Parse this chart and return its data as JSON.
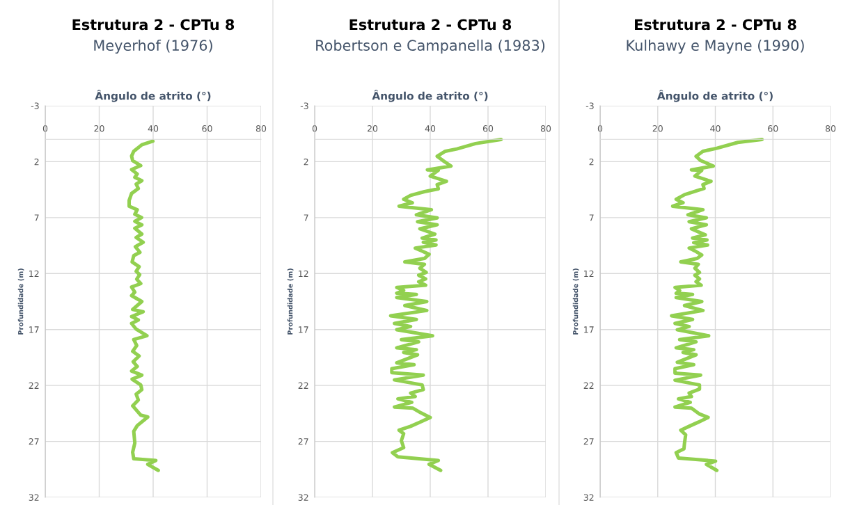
{
  "chart_data": [
    {
      "type": "line",
      "title": "Estrutura 2 - CPTu 8",
      "subtitle": "Meyerhof (1976)",
      "xlabel": "Ângulo de atrito (°)",
      "ylabel": "Profundidade (m)",
      "xlim": [
        0,
        80
      ],
      "xticks": [
        0,
        20,
        40,
        60,
        80
      ],
      "ylim": [
        32,
        -3
      ],
      "yticks": [
        -3,
        2,
        7,
        12,
        17,
        22,
        27,
        32
      ],
      "grid": true,
      "series": [
        {
          "color": "#92d050",
          "x": [
            39.9,
            35.8,
            32.8,
            32,
            32.4,
            35.4,
            32,
            34.1,
            33.2,
            35.8,
            33.7,
            34.5,
            32,
            31.1,
            31.1,
            34.1,
            33.2,
            35.7,
            33.2,
            35.8,
            33.2,
            35.8,
            33.7,
            36.3,
            33.4,
            35.1,
            32.8,
            32.2,
            34.8,
            33.7,
            35,
            33.9,
            35.4,
            32,
            33.2,
            32,
            35.8,
            32.4,
            36.3,
            32,
            34.5,
            32,
            33.7,
            37.7,
            32.8,
            33.9,
            32.4,
            34.8,
            32.6,
            34.1,
            32,
            35.8,
            32.2,
            35.4,
            35.8,
            33.7,
            34.5,
            32.4,
            35.4,
            38,
            34.1,
            32.8,
            33.2,
            32.4,
            32.8,
            41,
            38,
            41.9
          ],
          "values": [
            0.17,
            0.49,
            1.07,
            1.5,
            1.9,
            2.35,
            2.7,
            3.1,
            3.4,
            3.7,
            4.0,
            4.4,
            4.84,
            5.46,
            5.98,
            6.3,
            6.7,
            7.0,
            7.33,
            7.64,
            7.95,
            8.47,
            8.78,
            9.2,
            9.6,
            10.1,
            10.4,
            10.96,
            11.38,
            11.8,
            12.1,
            12.5,
            12.9,
            13.2,
            13.66,
            13.97,
            14.5,
            15.21,
            15.42,
            15.84,
            16.15,
            16.46,
            16.97,
            17.56,
            17.9,
            18.43,
            18.95,
            19.36,
            19.88,
            20.3,
            20.71,
            21.08,
            21.44,
            21.95,
            22.37,
            22.78,
            23.3,
            23.82,
            24.65,
            24.82,
            25.59,
            26.1,
            27.14,
            27.97,
            28.55,
            28.7,
            29.05,
            29.59
          ]
        }
      ]
    },
    {
      "type": "line",
      "title": "Estrutura 2 - CPTu 8",
      "subtitle": "Robertson e Campanella (1983)",
      "xlabel": "Ângulo de atrito (°)",
      "ylabel": "Profundidade (m)",
      "xlim": [
        0,
        80
      ],
      "xticks": [
        0,
        20,
        40,
        60,
        80
      ],
      "ylim": [
        32,
        -3
      ],
      "yticks": [
        -3,
        2,
        7,
        12,
        17,
        22,
        27,
        32
      ],
      "grid": true,
      "series": [
        {
          "color": "#92d050",
          "x": [
            64.5,
            55.7,
            49.2,
            45.2,
            42.4,
            44.4,
            47.2,
            39,
            42.8,
            40,
            45.6,
            42.4,
            42.8,
            38,
            33.2,
            30.8,
            33.8,
            29.2,
            40.4,
            35.2,
            42.4,
            35.6,
            42.4,
            36.4,
            41.6,
            37.2,
            42,
            37.6,
            42,
            34.8,
            37.2,
            39.6,
            38,
            31.2,
            38,
            36.4,
            38.6,
            36,
            38.4,
            36,
            38.4,
            28.4,
            30.8,
            28.4,
            35.2,
            28.4,
            38.8,
            31.2,
            38.8,
            26.3,
            35.2,
            27.6,
            33.2,
            28.4,
            40.8,
            30,
            36,
            28.4,
            35.2,
            30.8,
            35.6,
            28.4,
            34.4,
            26.7,
            26.7,
            37.6,
            27.6,
            37.2,
            37.6,
            33.2,
            34.8,
            28.8,
            33.6,
            27.6,
            34,
            36.8,
            40,
            36.4,
            33.2,
            29.2,
            30.8,
            30,
            30.8,
            26.9,
            28.8,
            42.8,
            39.6,
            43.6
          ],
          "values": [
            0.01,
            0.38,
            0.86,
            1.07,
            1.52,
            1.9,
            2.39,
            2.73,
            2.77,
            3.29,
            3.76,
            4.05,
            4.43,
            4.68,
            5.01,
            5.36,
            5.67,
            5.98,
            6.29,
            6.75,
            7.02,
            7.37,
            7.64,
            8.0,
            8.47,
            8.83,
            9.0,
            9.2,
            9.45,
            9.72,
            9.99,
            10.28,
            10.65,
            10.96,
            11.17,
            11.52,
            11.9,
            12.15,
            12.48,
            12.73,
            13.04,
            13.24,
            13.51,
            13.76,
            13.87,
            14.14,
            14.5,
            14.86,
            15.3,
            15.77,
            16.1,
            16.46,
            16.73,
            17.02,
            17.56,
            17.9,
            18.1,
            18.64,
            18.8,
            19.05,
            19.26,
            19.98,
            20.14,
            20.5,
            20.86,
            21.08,
            21.5,
            21.95,
            22.37,
            22.68,
            22.99,
            23.2,
            23.51,
            23.93,
            24.03,
            24.45,
            24.86,
            25.28,
            25.65,
            26.0,
            26.31,
            26.93,
            27.55,
            28.01,
            28.38,
            28.7,
            29.05,
            29.59
          ]
        }
      ]
    },
    {
      "type": "line",
      "title": "Estrutura 2 - CPTu 8",
      "subtitle": "Kulhawy e Mayne (1990)",
      "xlabel": "Ângulo de atrito (°)",
      "ylabel": "Profundidade (m)",
      "xlim": [
        0,
        80
      ],
      "xticks": [
        0,
        20,
        40,
        60,
        80
      ],
      "ylim": [
        32,
        -3
      ],
      "yticks": [
        -3,
        2,
        7,
        12,
        17,
        22,
        27,
        32
      ],
      "grid": true,
      "series": [
        {
          "color": "#92d050",
          "x": [
            56.2,
            47.8,
            40.5,
            35.7,
            33.3,
            34.9,
            39.3,
            31.7,
            35.3,
            32.9,
            38.5,
            35.7,
            36.1,
            32.5,
            29.3,
            26.4,
            28.8,
            25.2,
            35.7,
            30.5,
            36.9,
            30.9,
            36.9,
            31.7,
            36.5,
            32.1,
            37.1,
            32.5,
            37.3,
            30.9,
            33.3,
            35.3,
            33.7,
            28,
            34.1,
            32.9,
            34.5,
            32.9,
            34.5,
            33.3,
            35.1,
            26,
            27.6,
            26.4,
            32.1,
            26.4,
            35.3,
            29.3,
            35.7,
            24.8,
            32.1,
            26,
            30.9,
            26.8,
            37.7,
            27.6,
            33.3,
            26.4,
            32.5,
            28.8,
            33.3,
            26.8,
            32.5,
            26,
            26,
            34.9,
            26,
            34.5,
            34.5,
            30.9,
            31.7,
            27.2,
            31.3,
            26,
            31.7,
            34.5,
            37.5,
            34.1,
            30.9,
            28,
            29.7,
            29.3,
            29.1,
            26.4,
            27.2,
            40.1,
            36.9,
            40.5
          ],
          "values": [
            0.01,
            0.28,
            0.8,
            1.07,
            1.52,
            1.9,
            2.39,
            2.73,
            2.77,
            3.29,
            3.76,
            4.05,
            4.39,
            4.68,
            4.95,
            5.36,
            5.67,
            5.98,
            6.29,
            6.75,
            7.02,
            7.37,
            7.64,
            8.0,
            8.54,
            8.83,
            9.0,
            9.24,
            9.45,
            9.72,
            10.03,
            10.34,
            10.65,
            10.96,
            11.17,
            11.52,
            11.9,
            12.15,
            12.48,
            12.73,
            13.04,
            13.24,
            13.51,
            13.76,
            13.87,
            14.14,
            14.5,
            14.86,
            15.3,
            15.77,
            16.1,
            16.46,
            16.73,
            17.02,
            17.56,
            17.9,
            18.1,
            18.64,
            18.8,
            19.05,
            19.26,
            19.93,
            20.14,
            20.5,
            20.9,
            21.08,
            21.53,
            21.95,
            22.33,
            22.68,
            22.99,
            23.2,
            23.51,
            23.93,
            24.03,
            24.55,
            24.86,
            25.28,
            25.65,
            26.0,
            26.41,
            27.14,
            27.66,
            28.01,
            28.49,
            28.76,
            29.05,
            29.59
          ]
        }
      ]
    }
  ]
}
